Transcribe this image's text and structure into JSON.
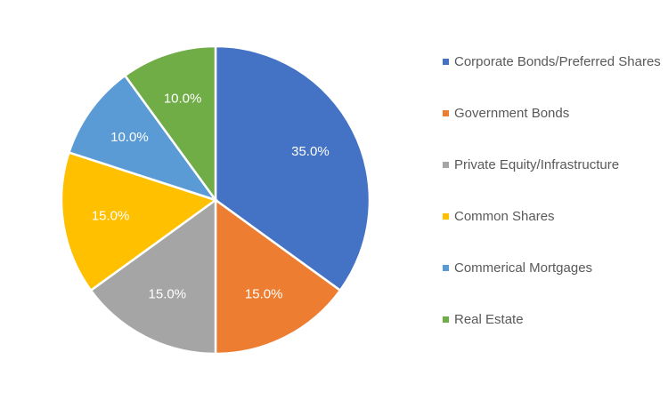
{
  "chart_data": {
    "type": "pie",
    "categories": [
      "Corporate Bonds/Preferred Shares",
      "Government Bonds",
      "Private Equity/Infrastructure",
      "Common Shares",
      "Commerical Mortgages",
      "Real Estate"
    ],
    "values": [
      35.0,
      15.0,
      15.0,
      15.0,
      10.0,
      10.0
    ],
    "data_labels": [
      "35.0%",
      "15.0%",
      "15.0%",
      "15.0%",
      "10.0%",
      "10.0%"
    ],
    "colors": [
      "#4472C4",
      "#ED7D31",
      "#A5A5A5",
      "#FFC000",
      "#5B9BD5",
      "#70AD47"
    ],
    "title": "",
    "legend_position": "right",
    "start_angle": "top",
    "direction": "clockwise"
  }
}
